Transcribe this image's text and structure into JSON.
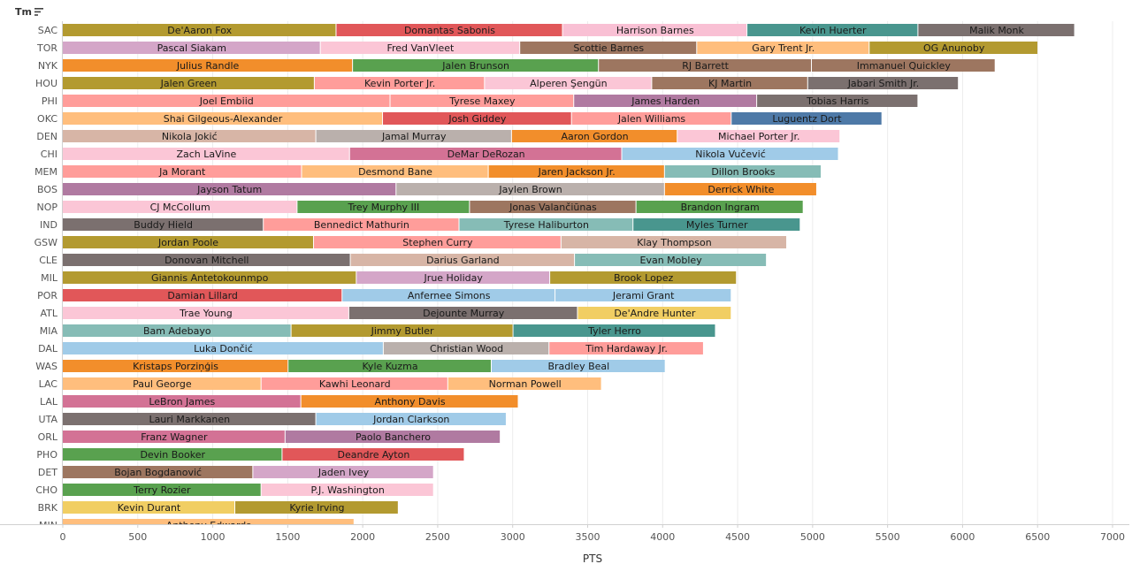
{
  "header": {
    "label": "Tm",
    "sort_icon": "sort-descending-icon"
  },
  "chart_data": {
    "type": "bar",
    "orientation": "horizontal",
    "stacked": true,
    "xlabel": "PTS",
    "ylabel": "Tm",
    "xlim": [
      0,
      7200
    ],
    "xticks": [
      0,
      500,
      1000,
      1500,
      2000,
      2500,
      3000,
      3500,
      4000,
      4500,
      5000,
      5500,
      6000,
      6500,
      7000
    ],
    "grid": "vertical",
    "rows": [
      {
        "team": "SAC",
        "segments": [
          {
            "player": "De'Aaron Fox",
            "pts": 1825,
            "color": "#b39a30"
          },
          {
            "player": "Domantas Sabonis",
            "pts": 1510,
            "color": "#e15759"
          },
          {
            "player": "Harrison Barnes",
            "pts": 1230,
            "color": "#f9c0d4"
          },
          {
            "player": "Kevin Huerter",
            "pts": 1140,
            "color": "#49968e"
          },
          {
            "player": "Malik Monk",
            "pts": 1045,
            "color": "#7b706f"
          }
        ]
      },
      {
        "team": "TOR",
        "segments": [
          {
            "player": "Pascal Siakam",
            "pts": 1720,
            "color": "#d4a6c8"
          },
          {
            "player": "Fred VanVleet",
            "pts": 1330,
            "color": "#fbc6d6"
          },
          {
            "player": "Scottie Barnes",
            "pts": 1180,
            "color": "#9d7660"
          },
          {
            "player": "Gary Trent Jr.",
            "pts": 1150,
            "color": "#ffbe7d"
          },
          {
            "player": "OG Anunoby",
            "pts": 1125,
            "color": "#b39a30"
          }
        ]
      },
      {
        "team": "NYK",
        "segments": [
          {
            "player": "Julius Randle",
            "pts": 1935,
            "color": "#f28e2b"
          },
          {
            "player": "Jalen Brunson",
            "pts": 1640,
            "color": "#59a14f"
          },
          {
            "player": "RJ Barrett",
            "pts": 1420,
            "color": "#9d7660"
          },
          {
            "player": "Immanuel Quickley",
            "pts": 1225,
            "color": "#9d7660"
          }
        ]
      },
      {
        "team": "HOU",
        "segments": [
          {
            "player": "Jalen Green",
            "pts": 1680,
            "color": "#b39a30"
          },
          {
            "player": "Kevin Porter Jr.",
            "pts": 1135,
            "color": "#ff9d9a"
          },
          {
            "player": "Alperen Şengün",
            "pts": 1115,
            "color": "#fbc6d6"
          },
          {
            "player": "KJ Martin",
            "pts": 1040,
            "color": "#9d7660"
          },
          {
            "player": "Jabari Smith Jr.",
            "pts": 1005,
            "color": "#7b706f"
          }
        ]
      },
      {
        "team": "PHI",
        "segments": [
          {
            "player": "Joel Embiid",
            "pts": 2185,
            "color": "#ff9d9a"
          },
          {
            "player": "Tyrese Maxey",
            "pts": 1225,
            "color": "#ff9d9a"
          },
          {
            "player": "James Harden",
            "pts": 1220,
            "color": "#b07aa1"
          },
          {
            "player": "Tobias Harris",
            "pts": 1075,
            "color": "#7b706f"
          }
        ]
      },
      {
        "team": "OKC",
        "segments": [
          {
            "player": "Shai Gilgeous-Alexander",
            "pts": 2135,
            "color": "#ffbe7d"
          },
          {
            "player": "Josh Giddey",
            "pts": 1260,
            "color": "#e15759"
          },
          {
            "player": "Jalen Williams",
            "pts": 1065,
            "color": "#ff9d9a"
          },
          {
            "player": "Luguentz Dort",
            "pts": 1005,
            "color": "#4e79a7"
          }
        ]
      },
      {
        "team": "DEN",
        "segments": [
          {
            "player": "Nikola Jokić",
            "pts": 1690,
            "color": "#d7b5a6"
          },
          {
            "player": "Jamal Murray",
            "pts": 1305,
            "color": "#bab0ac"
          },
          {
            "player": "Aaron Gordon",
            "pts": 1105,
            "color": "#f28e2b"
          },
          {
            "player": "Michael Porter Jr.",
            "pts": 1085,
            "color": "#fbc6d6"
          }
        ]
      },
      {
        "team": "CHI",
        "segments": [
          {
            "player": "Zach LaVine",
            "pts": 1915,
            "color": "#fbc6d6"
          },
          {
            "player": "DeMar DeRozan",
            "pts": 1815,
            "color": "#d37295"
          },
          {
            "player": "Nikola Vučević",
            "pts": 1445,
            "color": "#a0cbe8"
          }
        ]
      },
      {
        "team": "MEM",
        "segments": [
          {
            "player": "Ja Morant",
            "pts": 1595,
            "color": "#ff9d9a"
          },
          {
            "player": "Desmond Bane",
            "pts": 1245,
            "color": "#ffbe7d"
          },
          {
            "player": "Jaren Jackson Jr.",
            "pts": 1175,
            "color": "#f28e2b"
          },
          {
            "player": "Dillon Brooks",
            "pts": 1045,
            "color": "#86bcb6"
          }
        ]
      },
      {
        "team": "BOS",
        "segments": [
          {
            "player": "Jayson Tatum",
            "pts": 2225,
            "color": "#b07aa1"
          },
          {
            "player": "Jaylen Brown",
            "pts": 1790,
            "color": "#bab0ac"
          },
          {
            "player": "Derrick White",
            "pts": 1015,
            "color": "#f28e2b"
          }
        ]
      },
      {
        "team": "NOP",
        "segments": [
          {
            "player": "CJ McCollum",
            "pts": 1565,
            "color": "#fbc6d6"
          },
          {
            "player": "Trey Murphy III",
            "pts": 1150,
            "color": "#59a14f"
          },
          {
            "player": "Jonas Valančiūnas",
            "pts": 1110,
            "color": "#9d7660"
          },
          {
            "player": "Brandon Ingram",
            "pts": 1115,
            "color": "#59a14f"
          }
        ]
      },
      {
        "team": "IND",
        "segments": [
          {
            "player": "Buddy Hield",
            "pts": 1340,
            "color": "#7b706f"
          },
          {
            "player": "Bennedict Mathurin",
            "pts": 1305,
            "color": "#ff9d9a"
          },
          {
            "player": "Tyrese Haliburton",
            "pts": 1160,
            "color": "#86bcb6"
          },
          {
            "player": "Myles Turner",
            "pts": 1115,
            "color": "#49968e"
          }
        ]
      },
      {
        "team": "GSW",
        "segments": [
          {
            "player": "Jordan Poole",
            "pts": 1675,
            "color": "#b39a30"
          },
          {
            "player": "Stephen Curry",
            "pts": 1650,
            "color": "#ff9d9a"
          },
          {
            "player": "Klay Thompson",
            "pts": 1505,
            "color": "#d7b5a6"
          }
        ]
      },
      {
        "team": "CLE",
        "segments": [
          {
            "player": "Donovan Mitchell",
            "pts": 1920,
            "color": "#7b706f"
          },
          {
            "player": "Darius Garland",
            "pts": 1495,
            "color": "#d7b5a6"
          },
          {
            "player": "Evan Mobley",
            "pts": 1280,
            "color": "#86bcb6"
          }
        ]
      },
      {
        "team": "MIL",
        "segments": [
          {
            "player": "Giannis Antetokounmpo",
            "pts": 1960,
            "color": "#b39a30"
          },
          {
            "player": "Jrue Holiday",
            "pts": 1290,
            "color": "#d4a6c8"
          },
          {
            "player": "Brook Lopez",
            "pts": 1245,
            "color": "#b39a30"
          }
        ]
      },
      {
        "team": "POR",
        "segments": [
          {
            "player": "Damian Lillard",
            "pts": 1865,
            "color": "#e15759"
          },
          {
            "player": "Anfernee Simons",
            "pts": 1420,
            "color": "#a0cbe8"
          },
          {
            "player": "Jerami Grant",
            "pts": 1175,
            "color": "#a0cbe8"
          }
        ]
      },
      {
        "team": "ATL",
        "segments": [
          {
            "player": "Trae Young",
            "pts": 1910,
            "color": "#fbc6d6"
          },
          {
            "player": "Dejounte Murray",
            "pts": 1525,
            "color": "#7b706f"
          },
          {
            "player": "De'Andre Hunter",
            "pts": 1025,
            "color": "#f1ce63"
          }
        ]
      },
      {
        "team": "MIA",
        "segments": [
          {
            "player": "Bam Adebayo",
            "pts": 1525,
            "color": "#86bcb6"
          },
          {
            "player": "Jimmy Butler",
            "pts": 1480,
            "color": "#b39a30"
          },
          {
            "player": "Tyler Herro",
            "pts": 1350,
            "color": "#49968e"
          }
        ]
      },
      {
        "team": "DAL",
        "segments": [
          {
            "player": "Luka Dončić",
            "pts": 2140,
            "color": "#a0cbe8"
          },
          {
            "player": "Christian Wood",
            "pts": 1105,
            "color": "#bab0ac"
          },
          {
            "player": "Tim Hardaway Jr.",
            "pts": 1030,
            "color": "#ff9d9a"
          }
        ]
      },
      {
        "team": "WAS",
        "segments": [
          {
            "player": "Kristaps Porziņģis",
            "pts": 1505,
            "color": "#f28e2b"
          },
          {
            "player": "Kyle Kuzma",
            "pts": 1355,
            "color": "#59a14f"
          },
          {
            "player": "Bradley Beal",
            "pts": 1160,
            "color": "#a0cbe8"
          }
        ]
      },
      {
        "team": "LAC",
        "segments": [
          {
            "player": "Paul George",
            "pts": 1325,
            "color": "#ffbe7d"
          },
          {
            "player": "Kawhi Leonard",
            "pts": 1245,
            "color": "#ff9d9a"
          },
          {
            "player": "Norman Powell",
            "pts": 1025,
            "color": "#ffbe7d"
          }
        ]
      },
      {
        "team": "LAL",
        "segments": [
          {
            "player": "LeBron James",
            "pts": 1590,
            "color": "#d37295"
          },
          {
            "player": "Anthony Davis",
            "pts": 1450,
            "color": "#f28e2b"
          }
        ]
      },
      {
        "team": "UTA",
        "segments": [
          {
            "player": "Lauri Markkanen",
            "pts": 1690,
            "color": "#7b706f"
          },
          {
            "player": "Jordan Clarkson",
            "pts": 1270,
            "color": "#a0cbe8"
          }
        ]
      },
      {
        "team": "ORL",
        "segments": [
          {
            "player": "Franz Wagner",
            "pts": 1485,
            "color": "#d37295"
          },
          {
            "player": "Paolo Banchero",
            "pts": 1435,
            "color": "#b07aa1"
          }
        ]
      },
      {
        "team": "PHO",
        "segments": [
          {
            "player": "Devin Booker",
            "pts": 1465,
            "color": "#59a14f"
          },
          {
            "player": "Deandre Ayton",
            "pts": 1215,
            "color": "#e15759"
          }
        ]
      },
      {
        "team": "DET",
        "segments": [
          {
            "player": "Bojan Bogdanović",
            "pts": 1270,
            "color": "#9d7660"
          },
          {
            "player": "Jaden Ivey",
            "pts": 1205,
            "color": "#d4a6c8"
          }
        ]
      },
      {
        "team": "CHO",
        "segments": [
          {
            "player": "Terry Rozier",
            "pts": 1325,
            "color": "#59a14f"
          },
          {
            "player": "P.J. Washington",
            "pts": 1150,
            "color": "#fbc6d6"
          }
        ]
      },
      {
        "team": "BRK",
        "segments": [
          {
            "player": "Kevin Durant",
            "pts": 1150,
            "color": "#f1ce63"
          },
          {
            "player": "Kyrie Irving",
            "pts": 1090,
            "color": "#b39a30"
          }
        ]
      },
      {
        "team": "MIN",
        "segments": [
          {
            "player": "Anthony Edwards",
            "pts": 1945,
            "color": "#ffbe7d"
          }
        ]
      }
    ]
  }
}
